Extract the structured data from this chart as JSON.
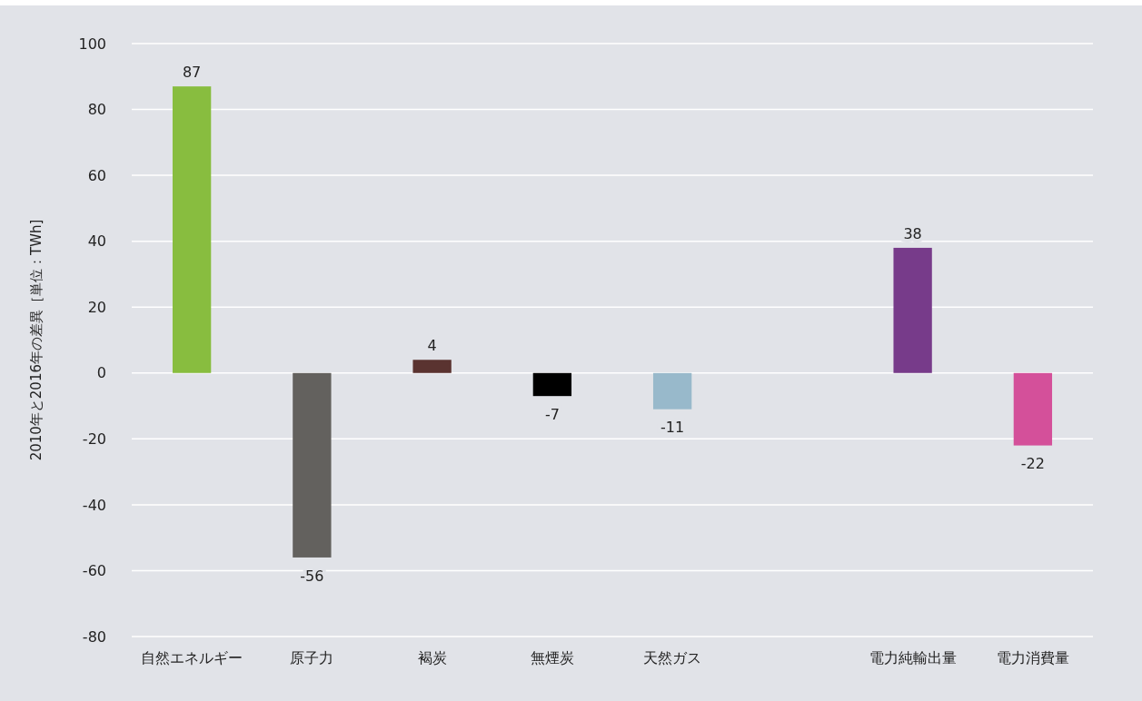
{
  "chart_data": {
    "type": "bar",
    "ylabel": "2010年と2016年の差異［単位：TWh]",
    "categories": [
      "自然エネルギー",
      "原子力",
      "褐炭",
      "無煙炭",
      "天然ガス",
      null,
      "電力純輸出量",
      "電力消費量"
    ],
    "values": [
      87,
      -56,
      4,
      -7,
      -11,
      null,
      38,
      -22
    ],
    "colors": [
      "#88bd3f",
      "#63615e",
      "#5a3330",
      "#000000",
      "#98b9cb",
      null,
      "#773b8a",
      "#d4509a"
    ],
    "ylim": [
      -80,
      100
    ],
    "yticks": [
      -80,
      -60,
      -40,
      -20,
      0,
      20,
      40,
      60,
      80,
      100
    ],
    "grid": "y",
    "data_labels": true
  }
}
